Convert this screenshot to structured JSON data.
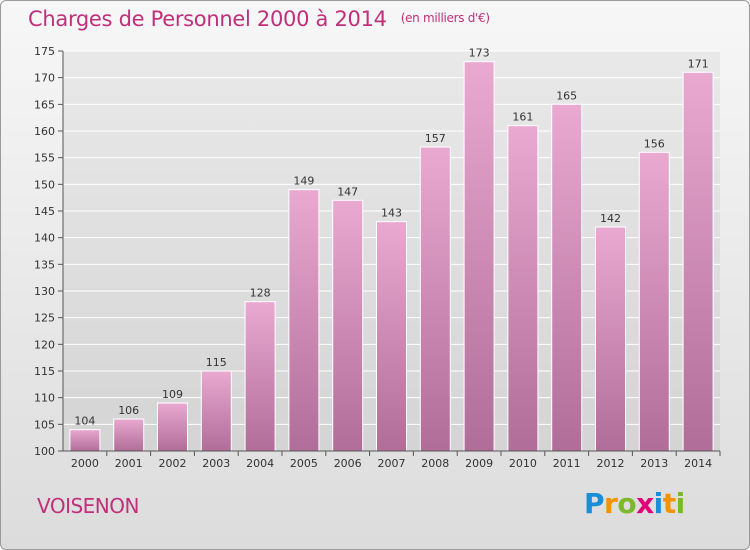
{
  "header": {
    "title": "Charges de Personnel 2000 à 2014",
    "subtitle": "(en milliers d'€)"
  },
  "footer": {
    "commune": "VOISENON",
    "logo_text": "Proxiti"
  },
  "colors": {
    "title": "#c0307a",
    "bar_top": "#e9a9d0",
    "bar_bottom": "#b06d98",
    "grid": "#ffffff"
  },
  "chart_data": {
    "type": "bar",
    "categories": [
      "2000",
      "2001",
      "2002",
      "2003",
      "2004",
      "2005",
      "2006",
      "2007",
      "2008",
      "2009",
      "2010",
      "2011",
      "2012",
      "2013",
      "2014"
    ],
    "values": [
      104,
      106,
      109,
      115,
      128,
      149,
      147,
      143,
      157,
      173,
      161,
      165,
      142,
      156,
      171
    ],
    "ylim": [
      100,
      175
    ],
    "yticks": [
      100,
      105,
      110,
      115,
      120,
      125,
      130,
      135,
      140,
      145,
      150,
      155,
      160,
      165,
      170,
      175
    ],
    "grid": true,
    "data_labels": true
  }
}
